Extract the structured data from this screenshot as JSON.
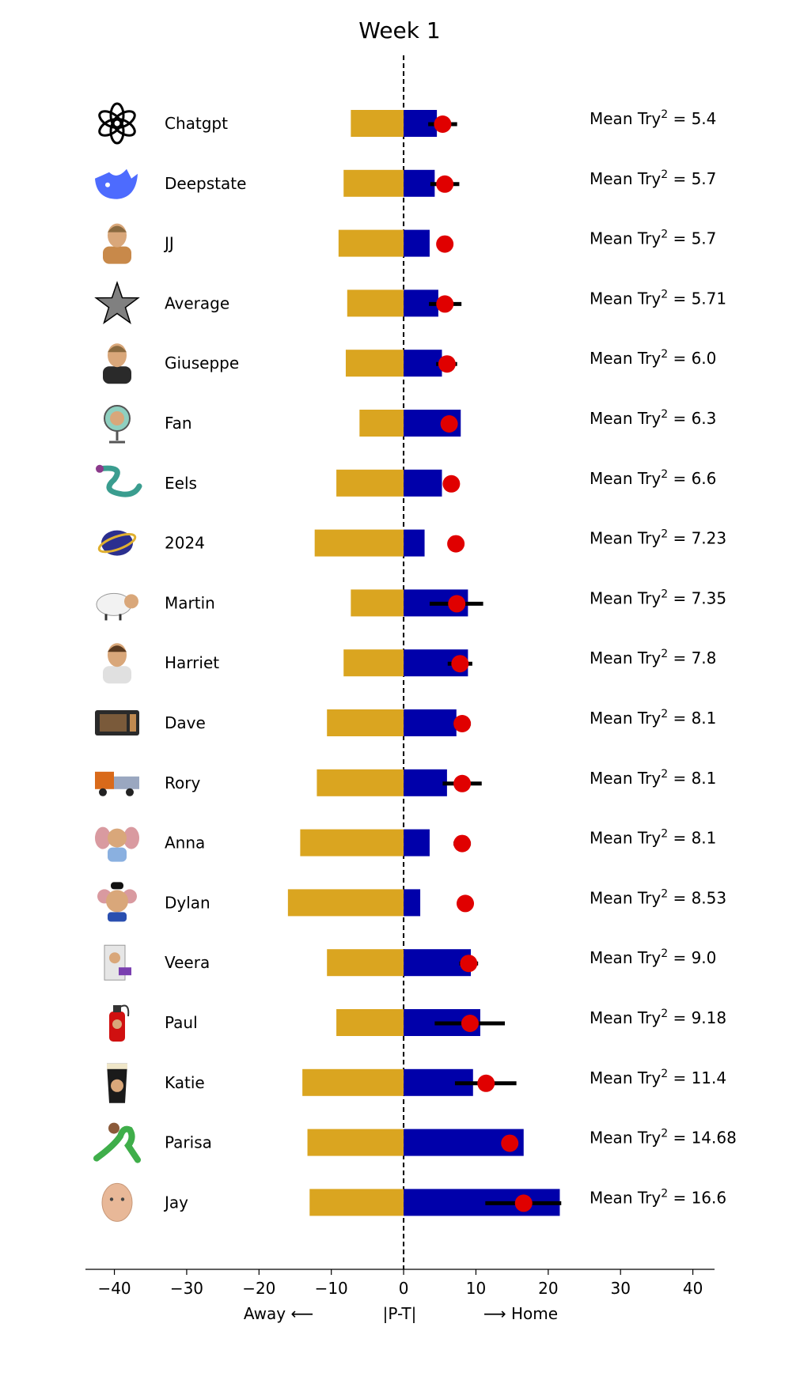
{
  "chart_data": {
    "type": "bar",
    "title": "Week 1",
    "orientation": "horizontal",
    "xlim": [
      -44,
      43
    ],
    "xticks": [
      -40,
      -30,
      -20,
      -10,
      0,
      10,
      20,
      30,
      40
    ],
    "xticklabels": [
      "−40",
      "−30",
      "−20",
      "−10",
      "0",
      "10",
      "20",
      "30",
      "40"
    ],
    "xlabel_left": "Away ⟵",
    "xlabel_center": "|P-T|",
    "xlabel_right": "⟶ Home",
    "annotation_prefix": "Mean Try",
    "annotation_exponent": "2",
    "annotation_equals": " = ",
    "colors": {
      "away": "#DAA520",
      "home": "#0000AA",
      "marker": "#E00000",
      "errorbar": "#000000"
    },
    "rows": [
      {
        "name": "Chatgpt",
        "icon": "openai-logo-icon",
        "away": -7.3,
        "home": 4.6,
        "marker": 5.4,
        "err_low": 3.4,
        "err_high": 7.4,
        "mean": "5.4"
      },
      {
        "name": "Deepstate",
        "icon": "blue-whale-icon",
        "away": -8.3,
        "home": 4.3,
        "marker": 5.7,
        "err_low": 3.7,
        "err_high": 7.7,
        "mean": "5.7"
      },
      {
        "name": "JJ",
        "icon": "man-with-dog-icon",
        "away": -9.0,
        "home": 3.6,
        "marker": 5.7,
        "err_low": null,
        "err_high": null,
        "mean": "5.7"
      },
      {
        "name": "Average",
        "icon": "grey-star-icon",
        "away": -7.8,
        "home": 4.8,
        "marker": 5.71,
        "err_low": 3.5,
        "err_high": 8.0,
        "mean": "5.71"
      },
      {
        "name": "Giuseppe",
        "icon": "bearded-man-icon",
        "away": -8.0,
        "home": 5.3,
        "marker": 6.0,
        "err_low": 4.5,
        "err_high": 7.4,
        "mean": "6.0"
      },
      {
        "name": "Fan",
        "icon": "desk-fan-icon",
        "away": -6.1,
        "home": 7.9,
        "marker": 6.3,
        "err_low": null,
        "err_high": null,
        "mean": "6.3"
      },
      {
        "name": "Eels",
        "icon": "eel-icon",
        "away": -9.3,
        "home": 5.3,
        "marker": 6.6,
        "err_low": null,
        "err_high": null,
        "mean": "6.6"
      },
      {
        "name": "2024",
        "icon": "2024-badge-icon",
        "away": -12.3,
        "home": 2.9,
        "marker": 7.23,
        "err_low": null,
        "err_high": null,
        "mean": "7.23"
      },
      {
        "name": "Martin",
        "icon": "sheep-icon",
        "away": -7.3,
        "home": 8.9,
        "marker": 7.35,
        "err_low": 3.6,
        "err_high": 11.0,
        "mean": "7.35"
      },
      {
        "name": "Harriet",
        "icon": "woman-figure-icon",
        "away": -8.3,
        "home": 8.9,
        "marker": 7.8,
        "err_low": 6.1,
        "err_high": 9.5,
        "mean": "7.8"
      },
      {
        "name": "Dave",
        "icon": "microwave-icon",
        "away": -10.6,
        "home": 7.3,
        "marker": 8.1,
        "err_low": 6.9,
        "err_high": 9.3,
        "mean": "8.1"
      },
      {
        "name": "Rory",
        "icon": "truck-icon",
        "away": -12.0,
        "home": 6.0,
        "marker": 8.1,
        "err_low": 5.4,
        "err_high": 10.8,
        "mean": "8.1"
      },
      {
        "name": "Anna",
        "icon": "elephant-icon",
        "away": -14.3,
        "home": 3.6,
        "marker": 8.1,
        "err_low": 6.9,
        "err_high": 9.3,
        "mean": "8.1"
      },
      {
        "name": "Dylan",
        "icon": "mouse-icon",
        "away": -16.0,
        "home": 2.3,
        "marker": 8.53,
        "err_low": null,
        "err_high": null,
        "mean": "8.53"
      },
      {
        "name": "Veera",
        "icon": "computer-icon",
        "away": -10.6,
        "home": 9.3,
        "marker": 9.0,
        "err_low": 7.7,
        "err_high": 10.3,
        "mean": "9.0"
      },
      {
        "name": "Paul",
        "icon": "fire-extinguisher-icon",
        "away": -9.3,
        "home": 10.6,
        "marker": 9.18,
        "err_low": 4.3,
        "err_high": 14.0,
        "mean": "9.18"
      },
      {
        "name": "Katie",
        "icon": "pint-glass-icon",
        "away": -14.0,
        "home": 9.6,
        "marker": 11.4,
        "err_low": 7.1,
        "err_high": 15.6,
        "mean": "11.4"
      },
      {
        "name": "Parisa",
        "icon": "dinosaur-icon",
        "away": -13.3,
        "home": 16.6,
        "marker": 14.68,
        "err_low": null,
        "err_high": null,
        "mean": "14.68"
      },
      {
        "name": "Jay",
        "icon": "child-face-icon",
        "away": -13.0,
        "home": 21.6,
        "marker": 16.6,
        "err_low": 11.3,
        "err_high": 21.8,
        "mean": "16.6"
      }
    ]
  }
}
